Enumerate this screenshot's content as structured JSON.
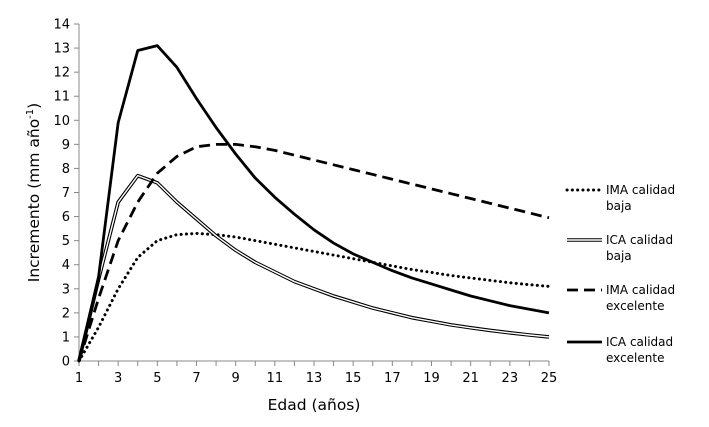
{
  "chart_data": {
    "type": "line",
    "title": "",
    "xlabel": "Edad (años)",
    "ylabel": {
      "base": "Incremento (mm año",
      "sup": "-1",
      "close": ")"
    },
    "xlim": [
      1,
      25
    ],
    "ylim": [
      0,
      14
    ],
    "x_ticks": [
      1,
      3,
      5,
      7,
      9,
      11,
      13,
      15,
      17,
      19,
      21,
      23,
      25
    ],
    "y_ticks": [
      0,
      1,
      2,
      3,
      4,
      5,
      6,
      7,
      8,
      9,
      10,
      11,
      12,
      13,
      14
    ],
    "grid": false,
    "legend_position": "right",
    "x": [
      1,
      2,
      3,
      4,
      5,
      6,
      7,
      8,
      9,
      10,
      11,
      12,
      13,
      14,
      15,
      16,
      17,
      18,
      19,
      20,
      21,
      22,
      23,
      24,
      25
    ],
    "series": [
      {
        "name": [
          "IMA calidad",
          "baja"
        ],
        "style": "dotted",
        "values": [
          0,
          1.4,
          3.0,
          4.3,
          5.0,
          5.25,
          5.3,
          5.25,
          5.15,
          5.0,
          4.85,
          4.7,
          4.55,
          4.4,
          4.25,
          4.1,
          3.95,
          3.8,
          3.68,
          3.55,
          3.45,
          3.35,
          3.25,
          3.17,
          3.1
        ]
      },
      {
        "name": [
          "ICA calidad",
          "baja"
        ],
        "style": "double",
        "values": [
          0,
          3.4,
          6.6,
          7.7,
          7.4,
          6.6,
          5.9,
          5.2,
          4.6,
          4.1,
          3.7,
          3.3,
          3.0,
          2.7,
          2.45,
          2.2,
          2.0,
          1.8,
          1.65,
          1.5,
          1.38,
          1.27,
          1.17,
          1.08,
          1.0
        ]
      },
      {
        "name": [
          "IMA calidad",
          "excelente"
        ],
        "style": "dashed",
        "values": [
          0,
          2.6,
          5.0,
          6.6,
          7.8,
          8.5,
          8.9,
          9.0,
          9.0,
          8.9,
          8.75,
          8.55,
          8.35,
          8.15,
          7.95,
          7.75,
          7.55,
          7.35,
          7.15,
          6.95,
          6.75,
          6.55,
          6.35,
          6.15,
          5.95
        ]
      },
      {
        "name": [
          "ICA calidad",
          "excelente"
        ],
        "style": "solid",
        "values": [
          0,
          3.5,
          9.9,
          12.9,
          13.1,
          12.2,
          10.9,
          9.7,
          8.6,
          7.6,
          6.8,
          6.1,
          5.45,
          4.9,
          4.45,
          4.1,
          3.75,
          3.45,
          3.2,
          2.95,
          2.7,
          2.5,
          2.3,
          2.15,
          2.0
        ]
      }
    ]
  }
}
